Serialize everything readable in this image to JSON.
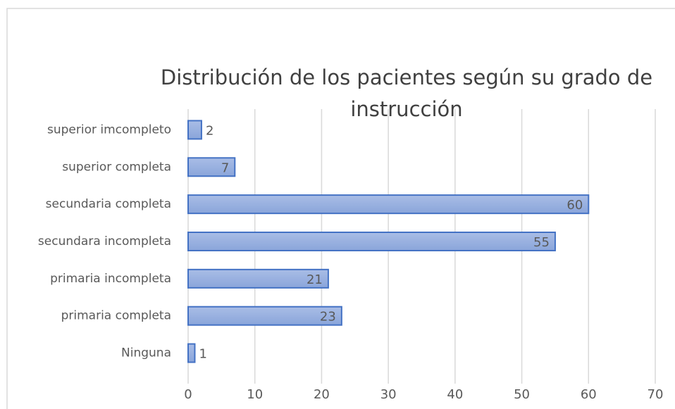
{
  "chart_data": {
    "type": "bar",
    "orientation": "horizontal",
    "title": "Distribución de los pacientes según su grado de instrucción",
    "categories": [
      "superior imcompleto",
      "superior completa",
      "secundaria completa",
      "secundara incompleta",
      "primaria incompleta",
      "primaria completa",
      "Ninguna"
    ],
    "values": [
      2,
      7,
      60,
      55,
      21,
      23,
      1
    ],
    "color": "#4472c4",
    "xlim": [
      0,
      70
    ],
    "xticks": [
      0,
      10,
      20,
      30,
      40,
      50,
      60,
      70
    ],
    "grid": true
  }
}
